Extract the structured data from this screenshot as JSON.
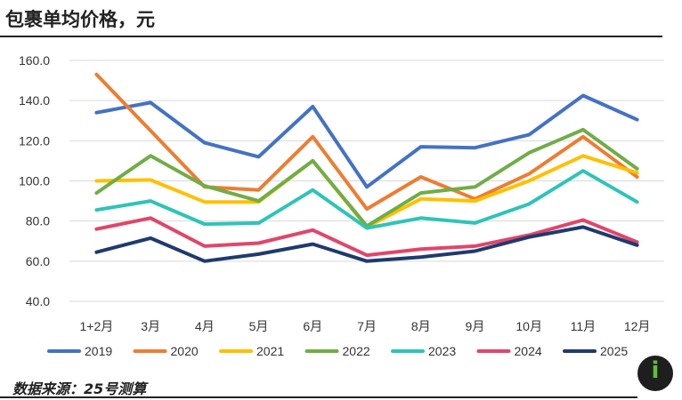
{
  "page": {
    "title": "包裹单均价格，元",
    "source": "数据来源：25号测算",
    "logo_glyph": "i"
  },
  "chart_data": {
    "type": "line",
    "title": "包裹单均价格，元",
    "xlabel": "",
    "ylabel": "",
    "ylim": [
      40,
      160
    ],
    "yticks": [
      40,
      60,
      80,
      100,
      120,
      140,
      160
    ],
    "ytick_labels": [
      "40.0",
      "60.0",
      "80.0",
      "100.0",
      "120.0",
      "140.0",
      "160.0"
    ],
    "grid": true,
    "legend_position": "bottom",
    "categories": [
      "1+2月",
      "3月",
      "4月",
      "5月",
      "6月",
      "7月",
      "8月",
      "9月",
      "10月",
      "11月",
      "12月"
    ],
    "series": [
      {
        "name": "2019",
        "color": "#4472C4",
        "values": [
          134,
          139,
          119,
          112,
          137,
          97,
          117,
          116.5,
          123,
          142.5,
          130.5
        ]
      },
      {
        "name": "2020",
        "color": "#ED7D31",
        "values": [
          153,
          125,
          97,
          95.5,
          122,
          86,
          102,
          91,
          103.5,
          122,
          102
        ]
      },
      {
        "name": "2021",
        "color": "#FFC000",
        "values": [
          100,
          100.5,
          89.5,
          89.5,
          110,
          77,
          91,
          90,
          100,
          112.5,
          104
        ]
      },
      {
        "name": "2022",
        "color": "#70AD47",
        "values": [
          94,
          112.5,
          97.5,
          90,
          110,
          77.5,
          94,
          97,
          114,
          125.5,
          106
        ]
      },
      {
        "name": "2023",
        "color": "#2EC4B6",
        "values": [
          85.5,
          90,
          78.5,
          79,
          95.5,
          76.5,
          81.5,
          79,
          88.5,
          105,
          89.5
        ]
      },
      {
        "name": "2024",
        "color": "#E0466A",
        "values": [
          76,
          81.5,
          67.5,
          69,
          75.5,
          63,
          66,
          67.5,
          73,
          80.5,
          69.5
        ]
      },
      {
        "name": "2025",
        "color": "#1F3A6E",
        "values": [
          64.5,
          71.5,
          60,
          63.5,
          68.5,
          60,
          62,
          65,
          72,
          77,
          68
        ]
      }
    ]
  }
}
